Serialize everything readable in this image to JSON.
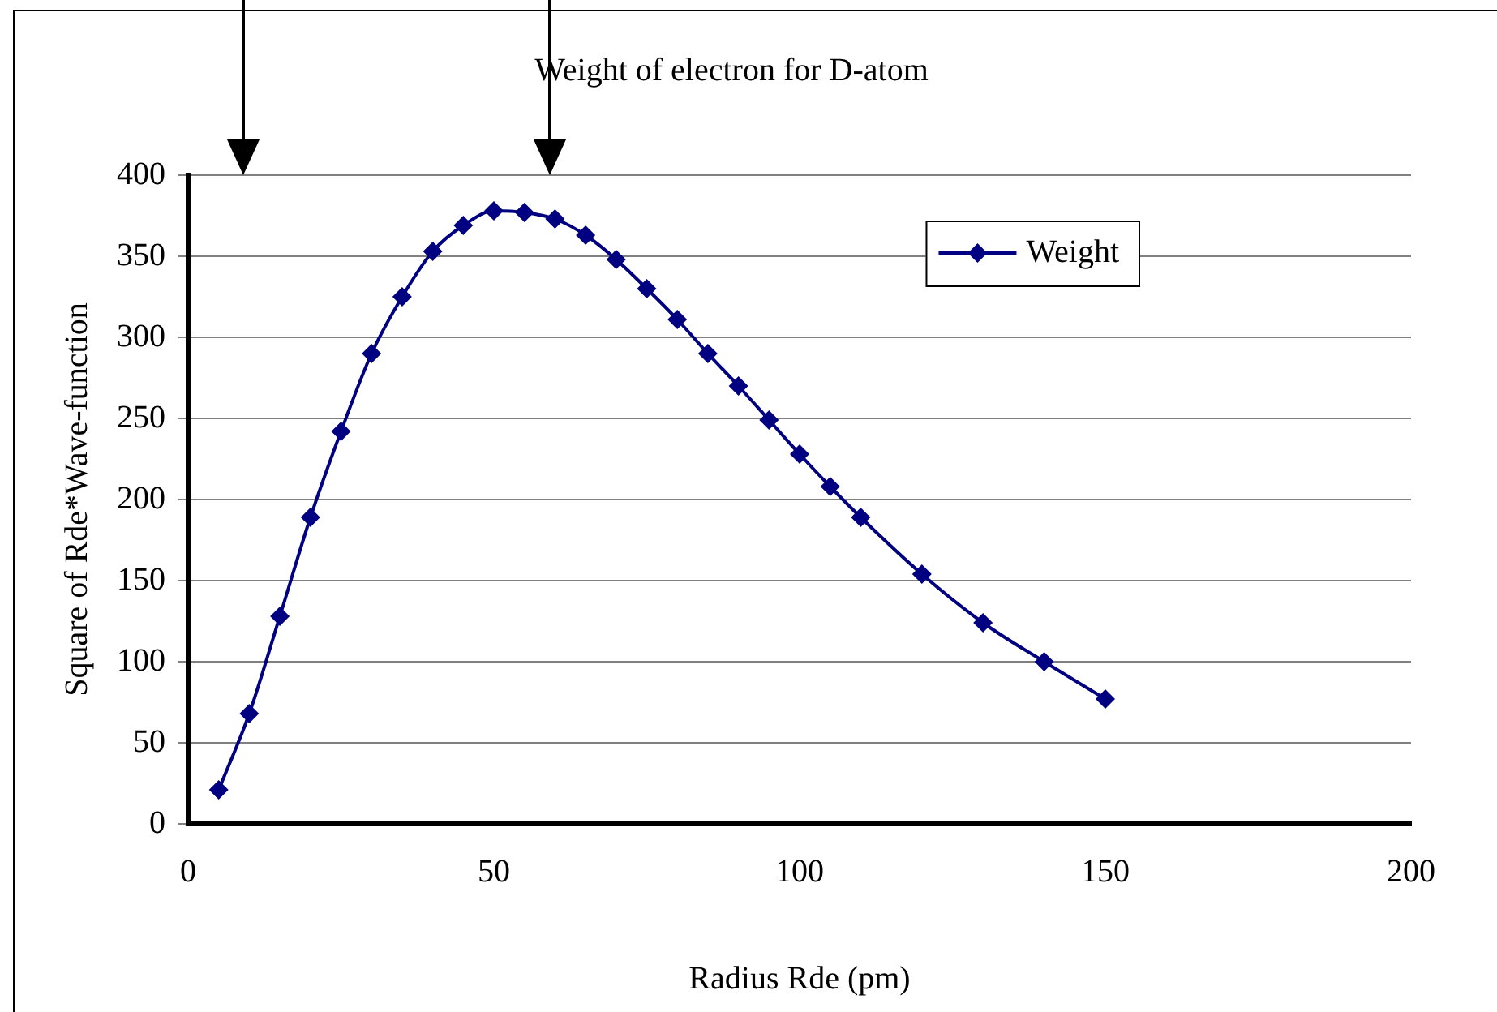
{
  "chart_data": {
    "type": "line",
    "title": "Weight of electron for D-atom",
    "xlabel": "Radius Rde (pm)",
    "ylabel": "Square of Rde*Wave-function",
    "x": [
      5,
      10,
      15,
      20,
      25,
      30,
      35,
      40,
      45,
      50,
      55,
      60,
      65,
      70,
      75,
      80,
      85,
      90,
      95,
      100,
      105,
      110,
      120,
      130,
      140,
      150
    ],
    "series": [
      {
        "name": "Weight",
        "color": "#000080",
        "values": [
          21,
          68,
          128,
          189,
          242,
          290,
          325,
          353,
          369,
          378,
          377,
          373,
          363,
          348,
          330,
          311,
          290,
          270,
          249,
          228,
          208,
          189,
          154,
          124,
          100,
          77
        ]
      }
    ],
    "xlim": [
      0,
      200
    ],
    "xticks": [
      0,
      50,
      100,
      150,
      200
    ],
    "ylim": [
      0,
      400
    ],
    "yticks": [
      0,
      50,
      100,
      150,
      200,
      250,
      300,
      350,
      400
    ],
    "grid": "y",
    "legend": "top right",
    "marker": "diamond",
    "line_style": "solid"
  }
}
